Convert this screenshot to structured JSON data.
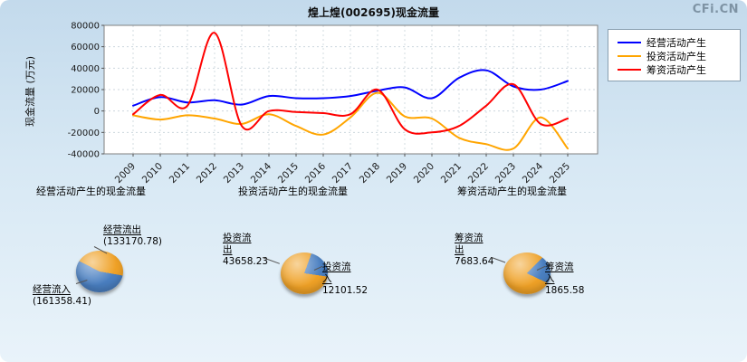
{
  "page": {
    "watermark": "CFi.CN"
  },
  "chart_data": {
    "line_chart": {
      "type": "line",
      "title": "煌上煌(002695)现金流量",
      "ylabel": "现金流量 (万元)",
      "ylim": [
        -40000,
        80000
      ],
      "yticks": [
        80000,
        60000,
        40000,
        20000,
        0,
        -20000,
        -40000
      ],
      "categories": [
        2009,
        2010,
        2011,
        2012,
        2013,
        2014,
        2015,
        2016,
        2017,
        2018,
        2019,
        2020,
        2021,
        2022,
        2023,
        2024,
        2025
      ],
      "grid": true,
      "legend_position": "top-right",
      "series": [
        {
          "name": "经营活动产生",
          "color": "#0000ff",
          "values": [
            5000,
            13000,
            8000,
            10000,
            6000,
            14000,
            12000,
            12000,
            14000,
            19000,
            22000,
            12000,
            31000,
            38000,
            23000,
            20000,
            28000
          ]
        },
        {
          "name": "投资活动产生",
          "color": "#ffa500",
          "values": [
            -4000,
            -8000,
            -4000,
            -7000,
            -12000,
            -3000,
            -14000,
            -22000,
            -6000,
            17000,
            -5000,
            -7000,
            -25000,
            -31000,
            -35000,
            -6000,
            -35000
          ]
        },
        {
          "name": "筹资活动产生",
          "color": "#ff0000",
          "values": [
            -3000,
            15000,
            5000,
            73000,
            -14000,
            0,
            -1000,
            -2000,
            -3000,
            20000,
            -17000,
            -20000,
            -14000,
            5000,
            25000,
            -12000,
            -7000
          ]
        }
      ]
    },
    "pie_charts": [
      {
        "type": "pie",
        "heading": "经营活动产生的现金流量",
        "outflow": {
          "label": "经营流出",
          "display": "(133170.78)",
          "value": 133170.78,
          "color": "#efa126"
        },
        "inflow": {
          "label": "经营流入",
          "display": "(161358.41)",
          "value": 161358.41,
          "color": "#4a7fc1"
        },
        "start_deg": 100
      },
      {
        "type": "pie",
        "heading": "投资活动产生的现金流量",
        "outflow": {
          "label": "投资流出",
          "display": "43658.23",
          "value": 43658.23,
          "color": "#efa126"
        },
        "inflow": {
          "label": "投资流入",
          "display": "12101.52",
          "value": 12101.52,
          "color": "#4a7fc1"
        },
        "start_deg": 20
      },
      {
        "type": "pie",
        "heading": "筹资活动产生的现金流量",
        "outflow": {
          "label": "筹资流出",
          "display": "7683.64",
          "value": 7683.64,
          "color": "#efa126"
        },
        "inflow": {
          "label": "筹资流入",
          "display": "1865.58",
          "value": 1865.58,
          "color": "#4a7fc1"
        },
        "start_deg": 45
      }
    ]
  }
}
